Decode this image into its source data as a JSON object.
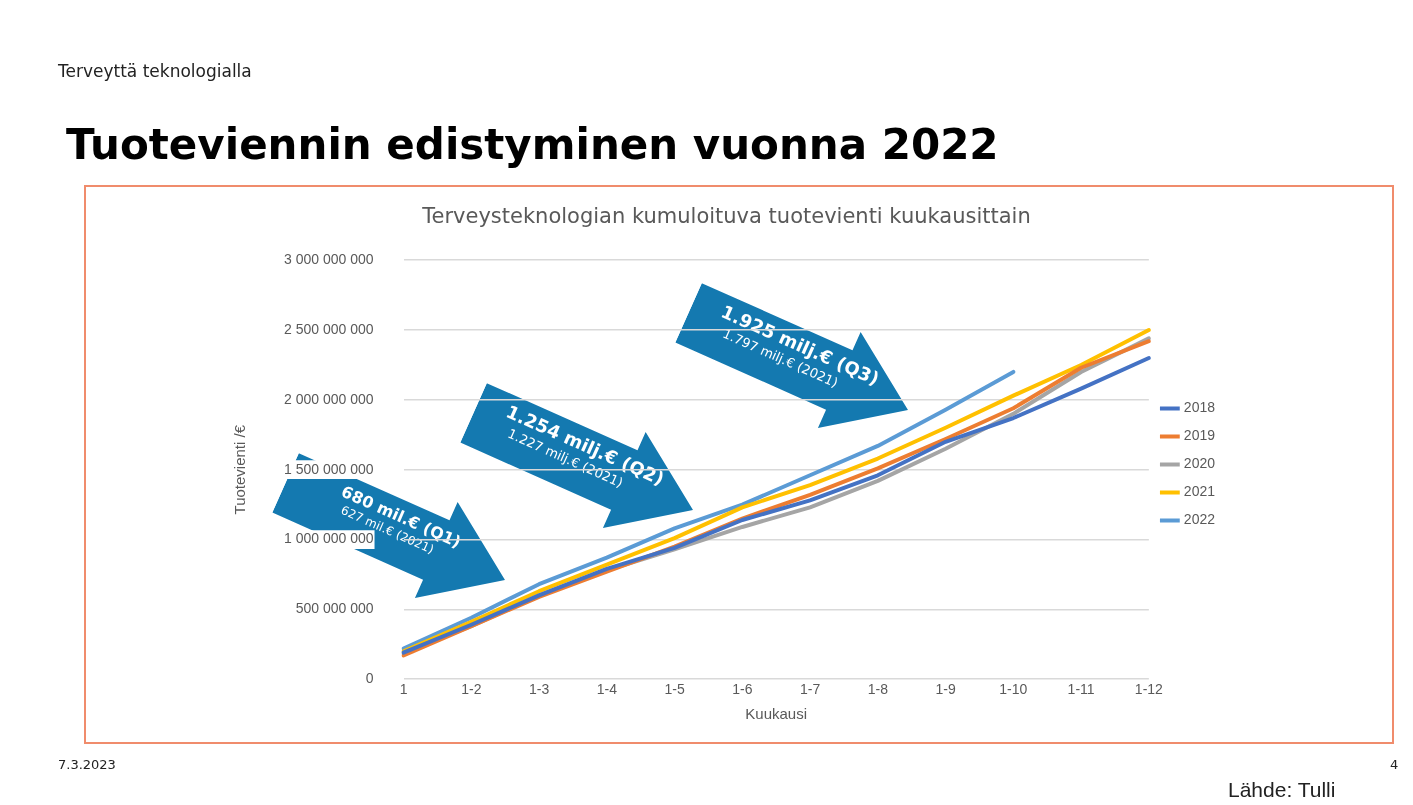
{
  "chart_data": {
    "type": "line",
    "title": "Tuoteviennin edistyminen vuonna 2022",
    "subtitle": "Terveysteknologian kumuloituva tuotevienti kuukausittain",
    "xlabel": "Kuukausi",
    "ylabel": "Tuotevienti /€",
    "categories": [
      "1",
      "1-2",
      "1-3",
      "1-4",
      "1-5",
      "1-6",
      "1-7",
      "1-8",
      "1-9",
      "1-10",
      "1-11",
      "1-12"
    ],
    "series": [
      {
        "name": "2018",
        "color": "#4472c4",
        "values": [
          190000000,
          390000000,
          600000000,
          790000000,
          940000000,
          1140000000,
          1280000000,
          1460000000,
          1700000000,
          1870000000,
          2080000000,
          2300000000
        ]
      },
      {
        "name": "2019",
        "color": "#ed7d31",
        "values": [
          170000000,
          380000000,
          590000000,
          770000000,
          950000000,
          1150000000,
          1320000000,
          1510000000,
          1720000000,
          1940000000,
          2230000000,
          2420000000
        ]
      },
      {
        "name": "2020",
        "color": "#a5a5a5",
        "values": [
          190000000,
          380000000,
          600000000,
          780000000,
          930000000,
          1090000000,
          1230000000,
          1420000000,
          1650000000,
          1900000000,
          2200000000,
          2440000000
        ]
      },
      {
        "name": "2021",
        "color": "#ffc000",
        "values": [
          200000000,
          410000000,
          630000000,
          820000000,
          1010000000,
          1230000000,
          1390000000,
          1580000000,
          1800000000,
          2030000000,
          2250000000,
          2500000000
        ]
      },
      {
        "name": "2022",
        "color": "#5b9bd5",
        "values": [
          220000000,
          440000000,
          680000000,
          870000000,
          1080000000,
          1250000000,
          1460000000,
          1670000000,
          1930000000,
          2200000000,
          null,
          null
        ]
      }
    ],
    "ylim": [
      0,
      3000000000
    ],
    "yticks": [
      {
        "value": 0,
        "label": "0"
      },
      {
        "value": 500000000,
        "label": "500 000 000"
      },
      {
        "value": 1000000000,
        "label": "1 000 000 000"
      },
      {
        "value": 1500000000,
        "label": "1 500 000 000"
      },
      {
        "value": 2000000000,
        "label": "2 000 000 000"
      },
      {
        "value": 2500000000,
        "label": "2 500 000 000"
      },
      {
        "value": 3000000000,
        "label": "3 000 000 000"
      }
    ],
    "grid": "y",
    "legend": "right",
    "marker": "none",
    "line_style": "solid",
    "annotations": [
      "Terveyttä teknologialla",
      "680 mil.€ (Q1)",
      "627 mil.€ (2021)",
      "1.254 milj.€ (Q2)",
      "1.227 milj.€ (2021)",
      "1.925 milj.€ (Q3)",
      "1.797 milj.€ (2021)",
      "7.3.2023",
      "4",
      "Lähde: Tulli"
    ]
  }
}
